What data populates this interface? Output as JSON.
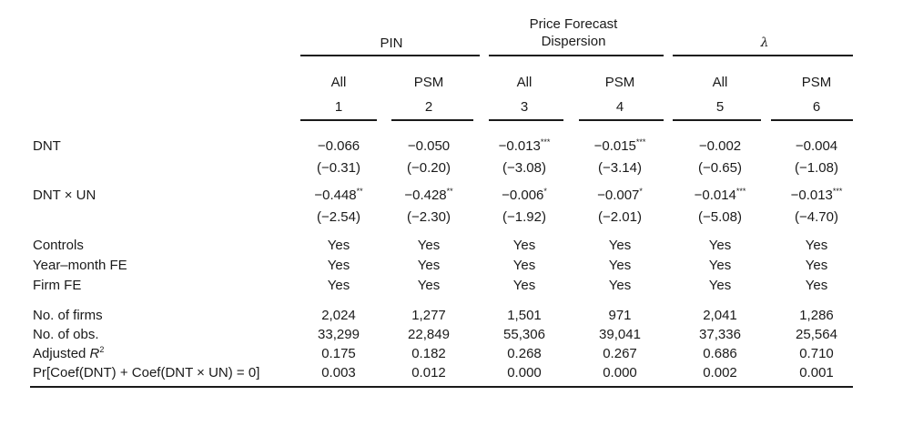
{
  "groups": [
    {
      "label": "PIN"
    },
    {
      "label_line1": "Price Forecast",
      "label_line2": "Dispersion"
    },
    {
      "label": "λ"
    }
  ],
  "samples": [
    "All",
    "PSM",
    "All",
    "PSM",
    "All",
    "PSM"
  ],
  "col_numbers": [
    "1",
    "2",
    "3",
    "4",
    "5",
    "6"
  ],
  "rows": {
    "dnt": {
      "label": "DNT",
      "coef": [
        "−0.066",
        "−0.050",
        "−0.013",
        "−0.015",
        "−0.002",
        "−0.004"
      ],
      "stars": [
        "",
        "",
        "***",
        "***",
        "",
        ""
      ],
      "t": [
        "(−0.31)",
        "(−0.20)",
        "(−3.08)",
        "(−3.14)",
        "(−0.65)",
        "(−1.08)"
      ]
    },
    "dnt_un": {
      "label": "DNT × UN",
      "coef": [
        "−0.448",
        "−0.428",
        "−0.006",
        "−0.007",
        "−0.014",
        "−0.013"
      ],
      "stars": [
        "**",
        "**",
        "*",
        "*",
        "***",
        "***"
      ],
      "t": [
        "(−2.54)",
        "(−2.30)",
        "(−1.92)",
        "(−2.01)",
        "(−5.08)",
        "(−4.70)"
      ]
    },
    "controls": {
      "label": "Controls",
      "values": [
        "Yes",
        "Yes",
        "Yes",
        "Yes",
        "Yes",
        "Yes"
      ]
    },
    "year_month_fe": {
      "label": "Year–month FE",
      "values": [
        "Yes",
        "Yes",
        "Yes",
        "Yes",
        "Yes",
        "Yes"
      ]
    },
    "firm_fe": {
      "label": "Firm FE",
      "values": [
        "Yes",
        "Yes",
        "Yes",
        "Yes",
        "Yes",
        "Yes"
      ]
    },
    "n_firms": {
      "label": "No. of firms",
      "values": [
        "2,024",
        "1,277",
        "1,501",
        "971",
        "2,041",
        "1,286"
      ]
    },
    "n_obs": {
      "label": "No. of obs.",
      "values": [
        "33,299",
        "22,849",
        "55,306",
        "39,041",
        "37,336",
        "25,564"
      ]
    },
    "adj_r2": {
      "label_prefix": "Adjusted ",
      "label_var": "R",
      "label_sup": "2",
      "values": [
        "0.175",
        "0.182",
        "0.268",
        "0.267",
        "0.686",
        "0.710"
      ]
    },
    "pr_test": {
      "label": "Pr[Coef(DNT) + Coef(DNT × UN) = 0]",
      "values": [
        "0.003",
        "0.012",
        "0.000",
        "0.000",
        "0.002",
        "0.001"
      ]
    }
  }
}
